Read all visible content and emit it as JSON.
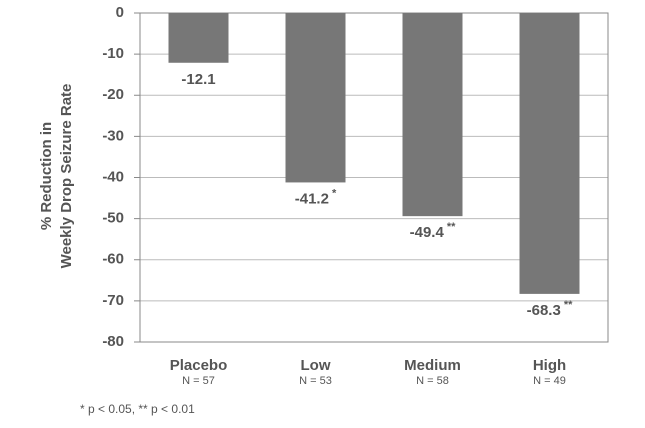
{
  "chart_data": {
    "type": "bar",
    "ylabel": [
      "% Reduction in",
      "Weekly Drop Seizure Rate"
    ],
    "categories": [
      "Placebo",
      "Low",
      "Medium",
      "High"
    ],
    "category_notes": [
      "N = 57",
      "N = 53",
      "N = 58",
      "N = 49"
    ],
    "values": [
      -12.1,
      -41.2,
      -49.4,
      -68.3
    ],
    "significance": [
      null,
      "*",
      "**",
      "**"
    ],
    "color": "#777777",
    "ylim": [
      -80,
      0
    ],
    "yticks": [
      0,
      -10,
      -20,
      -30,
      -40,
      -50,
      -60,
      -70,
      -80
    ],
    "grid": true,
    "footnote": "* p < 0.05, ** p < 0.01"
  }
}
